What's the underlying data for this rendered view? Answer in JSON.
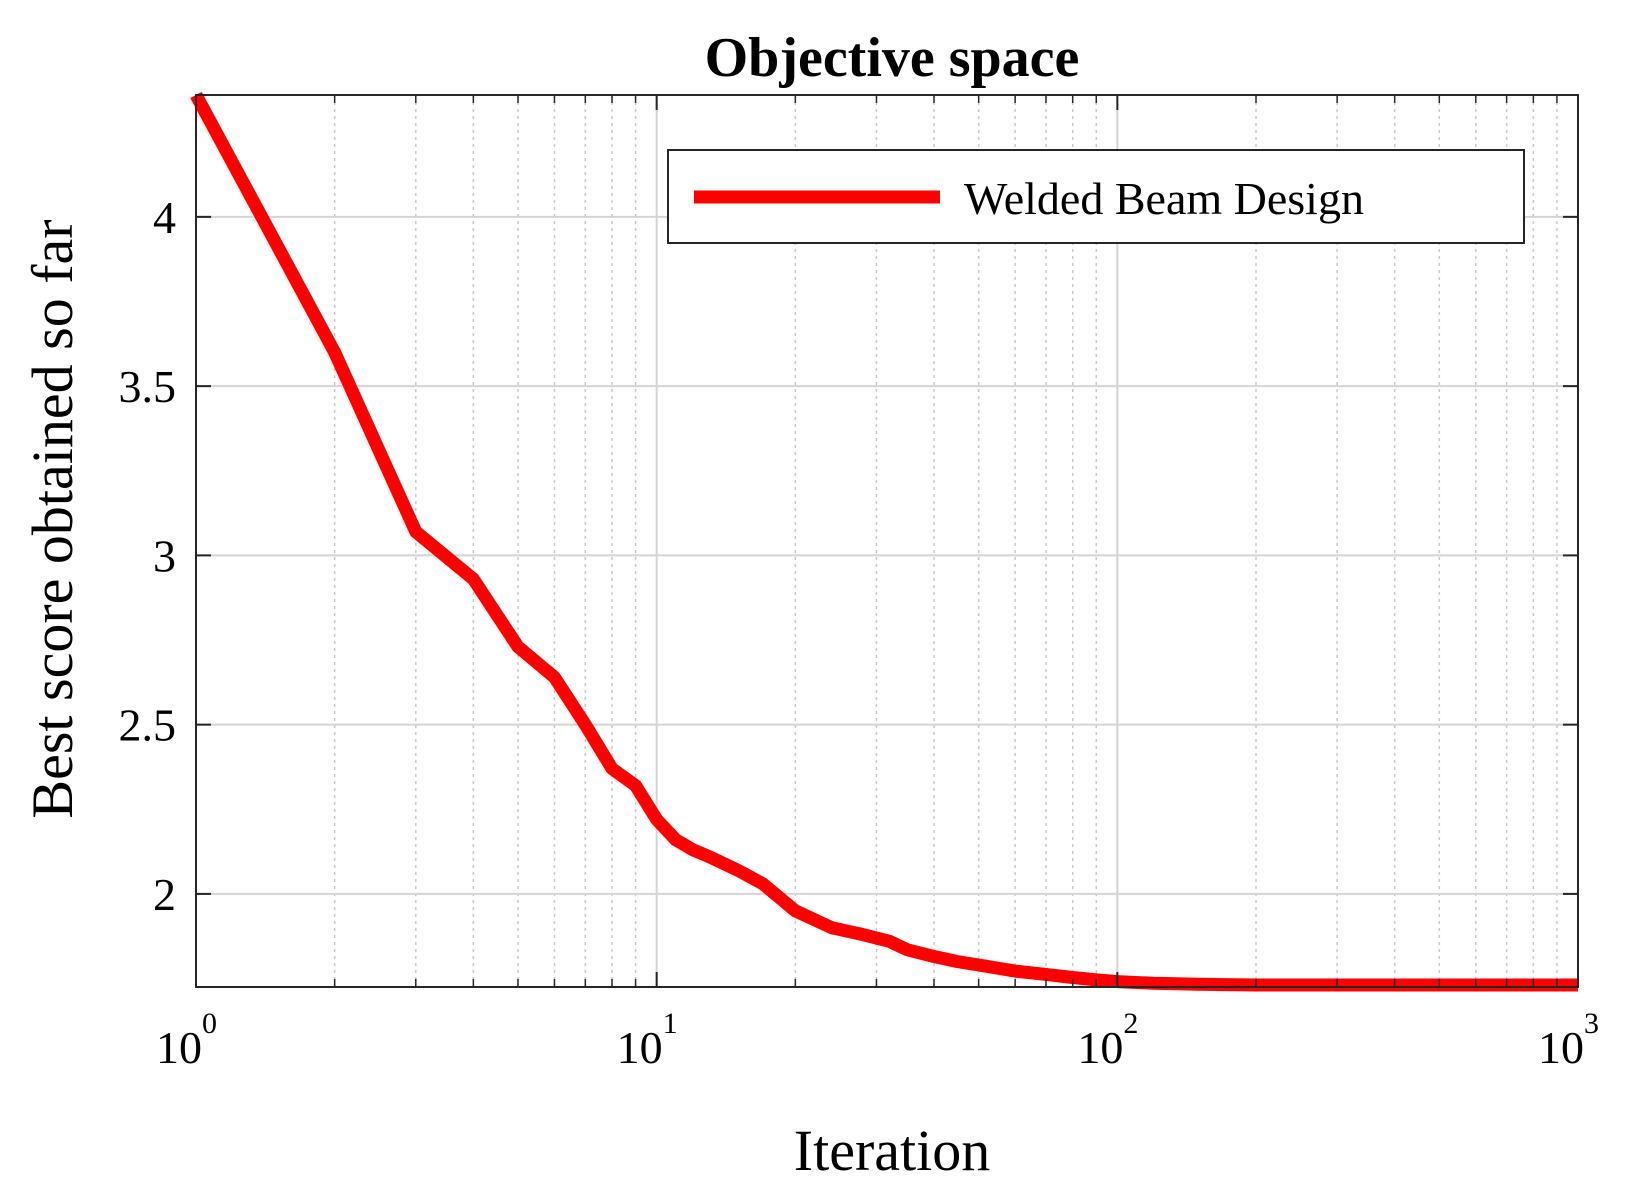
{
  "chart_data": {
    "type": "line",
    "title": "Objective space",
    "xlabel": "Iteration",
    "ylabel": "Best score obtained so far",
    "xscale": "log",
    "xlim": [
      1,
      1000
    ],
    "ylim": [
      1.725,
      4.36
    ],
    "grid": true,
    "legend_position": "top-right",
    "x_ticks": [
      {
        "base": "10",
        "exp": "0",
        "value": 1
      },
      {
        "base": "10",
        "exp": "1",
        "value": 10
      },
      {
        "base": "10",
        "exp": "2",
        "value": 100
      },
      {
        "base": "10",
        "exp": "3",
        "value": 1000
      }
    ],
    "y_ticks": [
      {
        "label": "2",
        "value": 2
      },
      {
        "label": "2.5",
        "value": 2.5
      },
      {
        "label": "3",
        "value": 3
      },
      {
        "label": "3.5",
        "value": 3.5
      },
      {
        "label": "4",
        "value": 4
      }
    ],
    "series": [
      {
        "name": "Welded Beam Design",
        "color": "#ff0000",
        "x": [
          1,
          2,
          3,
          4,
          5,
          6,
          7,
          8,
          9,
          10,
          11,
          12,
          13,
          15,
          17,
          20,
          24,
          28,
          32,
          35,
          40,
          45,
          50,
          60,
          70,
          80,
          90,
          100,
          120,
          150,
          200,
          300,
          500,
          1000
        ],
        "y": [
          4.36,
          3.6,
          3.07,
          2.93,
          2.73,
          2.64,
          2.5,
          2.37,
          2.32,
          2.22,
          2.16,
          2.13,
          2.11,
          2.07,
          2.03,
          1.95,
          1.9,
          1.88,
          1.86,
          1.835,
          1.815,
          1.8,
          1.79,
          1.772,
          1.762,
          1.753,
          1.746,
          1.741,
          1.736,
          1.733,
          1.731,
          1.731,
          1.731,
          1.731
        ]
      }
    ]
  }
}
